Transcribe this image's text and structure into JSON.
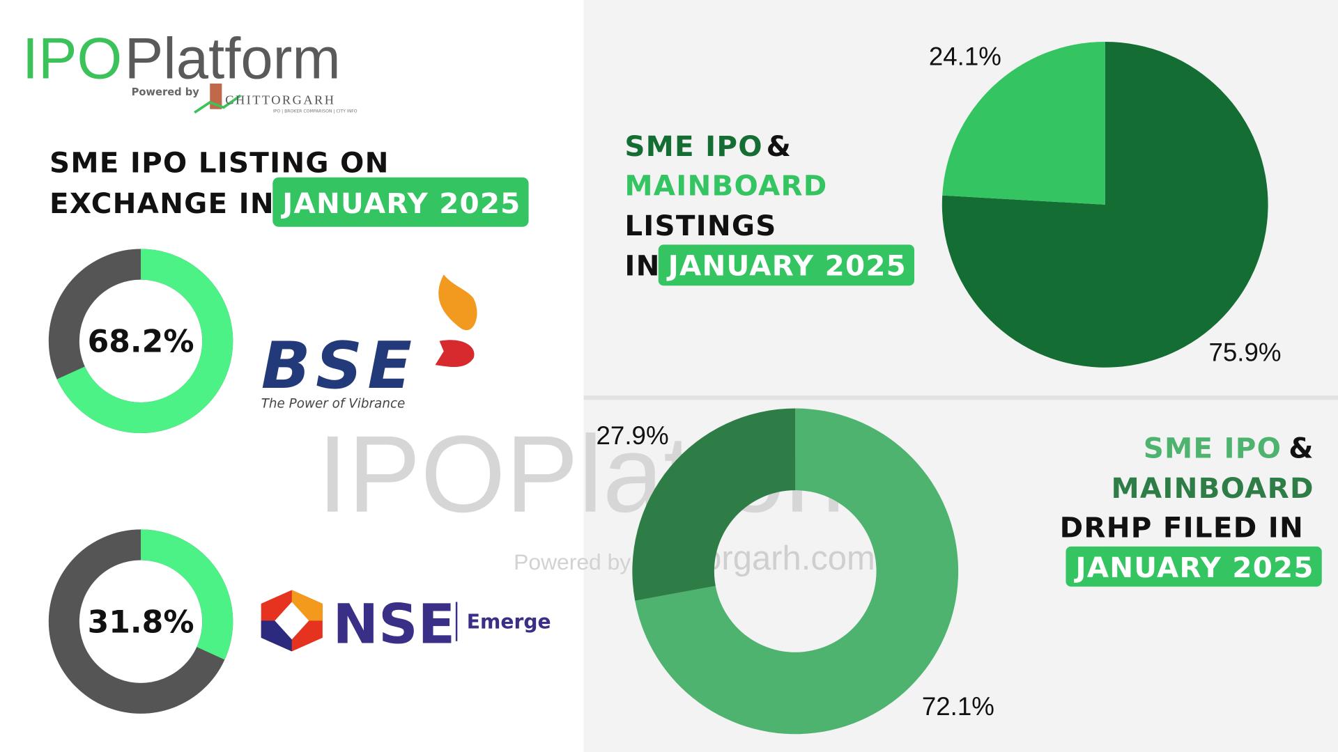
{
  "logo": {
    "brand_left": "IPO",
    "brand_right": "Platform",
    "powered_by": "Powered by",
    "partner": "CHITTORGARH",
    "partner_tagline": "IPO | BROKER COMPARISON | CITY INFO"
  },
  "watermark": {
    "brand": "IPOPlatform",
    "powered_by": "Powered by",
    "site": "chittorgarh.com"
  },
  "exchange_section": {
    "title_lines": [
      "SME IPO LISTING ON",
      "EXCHANGE IN"
    ],
    "highlight": "JANUARY 2025"
  },
  "chart_data": [
    {
      "type": "gauge",
      "values": [
        68.2
      ],
      "value_labels": [
        "68.2%"
      ],
      "color": "#4cf285",
      "track_color": "#555555",
      "exchange": {
        "name": "BSE",
        "tagline": "The Power of Vibrance"
      }
    },
    {
      "type": "gauge",
      "values": [
        31.8
      ],
      "value_labels": [
        "31.8%"
      ],
      "color": "#4cf285",
      "track_color": "#555555",
      "exchange": {
        "name": "NSE",
        "segment": "Emerge"
      }
    },
    {
      "type": "pie",
      "title": {
        "sme": "SME IPO",
        "amp": "&",
        "mainboard": "MAINBOARD",
        "line3": "LISTINGS",
        "line4": "IN",
        "highlight": "JANUARY 2025"
      },
      "values": [
        75.9,
        24.1
      ],
      "value_labels": [
        "75.9%",
        "24.1%"
      ],
      "colors": [
        "#146d32",
        "#34c462"
      ]
    },
    {
      "type": "donut",
      "title": {
        "sme": "SME IPO",
        "amp": "&",
        "mainboard": "MAINBOARD",
        "line3": "DRHP FILED IN",
        "highlight": "JANUARY 2025"
      },
      "values": [
        72.1,
        27.9
      ],
      "value_labels": [
        "72.1%",
        "27.9%"
      ],
      "colors": [
        "#4db36e",
        "#2e7d47"
      ]
    }
  ]
}
